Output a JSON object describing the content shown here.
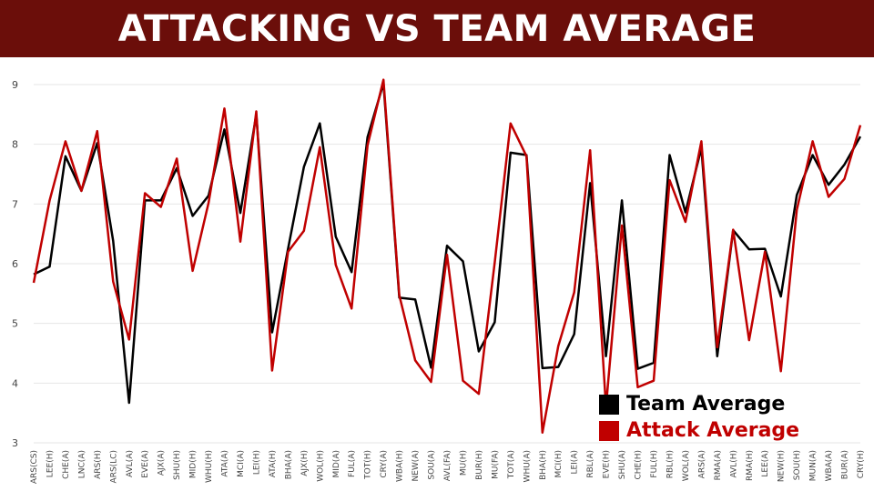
{
  "header": {
    "title": "ATTACKING VS TEAM AVERAGE"
  },
  "colors": {
    "banner": "#6b0e0a",
    "team": "#000000",
    "attack": "#c00000",
    "grid": "#e6e6e6"
  },
  "legend": {
    "items": [
      {
        "label": "Team Average",
        "color": "#000000"
      },
      {
        "label": "Attack Average",
        "color": "#c00000"
      }
    ]
  },
  "chart_data": {
    "type": "line",
    "x": [
      "ARS(CS)",
      "LEE(H)",
      "CHE(A)",
      "LNC(A)",
      "ARS(H)",
      "ARS(LC)",
      "AVL(A)",
      "EVE(A)",
      "AJX(A)",
      "SHU(H)",
      "MID(H)",
      "WHU(H)",
      "ATA(A)",
      "MCI(A)",
      "LEI(H)",
      "ATA(H)",
      "BHA(A)",
      "AJX(H)",
      "WOL(H)",
      "MID(A)",
      "FUL(A)",
      "TOT(H)",
      "CRY(A)",
      "WBA(H)",
      "NEW(A)",
      "SOU(A)",
      "AVL(FA)",
      "MU(H)",
      "BUR(H)",
      "MU(FA)",
      "TOT(A)",
      "WHU(A)",
      "BHA(H)",
      "MCI(H)",
      "LEI(A)",
      "RBL(A)",
      "EVE(H)",
      "SHU(A)",
      "CHE(H)",
      "FUL(H)",
      "RBL(H)",
      "WOL(A)",
      "ARS(A)",
      "RMA(A)",
      "AVL(H)",
      "RMA(H)",
      "LEE(A)",
      "NEW(H)",
      "SOU(H)",
      "MUN(A)",
      "WBA(A)",
      "BUR(A)",
      "CRY(H)"
    ],
    "series": [
      {
        "name": "Team Average",
        "color": "#000000",
        "values": [
          5.82,
          5.95,
          7.8,
          7.22,
          8.02,
          6.38,
          3.67,
          7.06,
          7.06,
          7.6,
          6.8,
          7.14,
          8.25,
          6.85,
          8.5,
          4.85,
          6.25,
          7.62,
          8.35,
          6.45,
          5.86,
          8.12,
          9.02,
          5.43,
          5.4,
          4.26,
          6.3,
          6.04,
          4.53,
          5.02,
          7.86,
          7.82,
          4.25,
          4.27,
          4.82,
          7.35,
          4.45,
          7.06,
          4.24,
          4.34,
          7.82,
          6.86,
          7.94,
          4.45,
          6.56,
          6.24,
          6.25,
          5.45,
          7.15,
          7.82,
          7.32,
          7.66,
          8.13
        ]
      },
      {
        "name": "Attack Average",
        "color": "#c00000",
        "values": [
          5.68,
          7.06,
          8.05,
          7.22,
          8.22,
          5.7,
          4.73,
          7.18,
          6.95,
          7.76,
          5.88,
          7.02,
          8.6,
          6.37,
          8.55,
          4.21,
          6.2,
          6.55,
          7.95,
          5.98,
          5.25,
          7.98,
          9.08,
          5.47,
          4.38,
          4.02,
          6.15,
          4.04,
          3.82,
          6.02,
          8.35,
          7.8,
          3.17,
          4.62,
          5.52,
          7.9,
          3.6,
          6.64,
          3.93,
          4.04,
          7.4,
          6.7,
          8.05,
          4.6,
          6.57,
          4.72,
          6.2,
          4.2,
          6.9,
          8.05,
          7.12,
          7.42,
          8.32
        ]
      }
    ],
    "ylim": [
      3,
      9
    ],
    "yticks": [
      3,
      4,
      5,
      6,
      7,
      8,
      9
    ],
    "grid": true,
    "legend_position": "bottom-right"
  }
}
